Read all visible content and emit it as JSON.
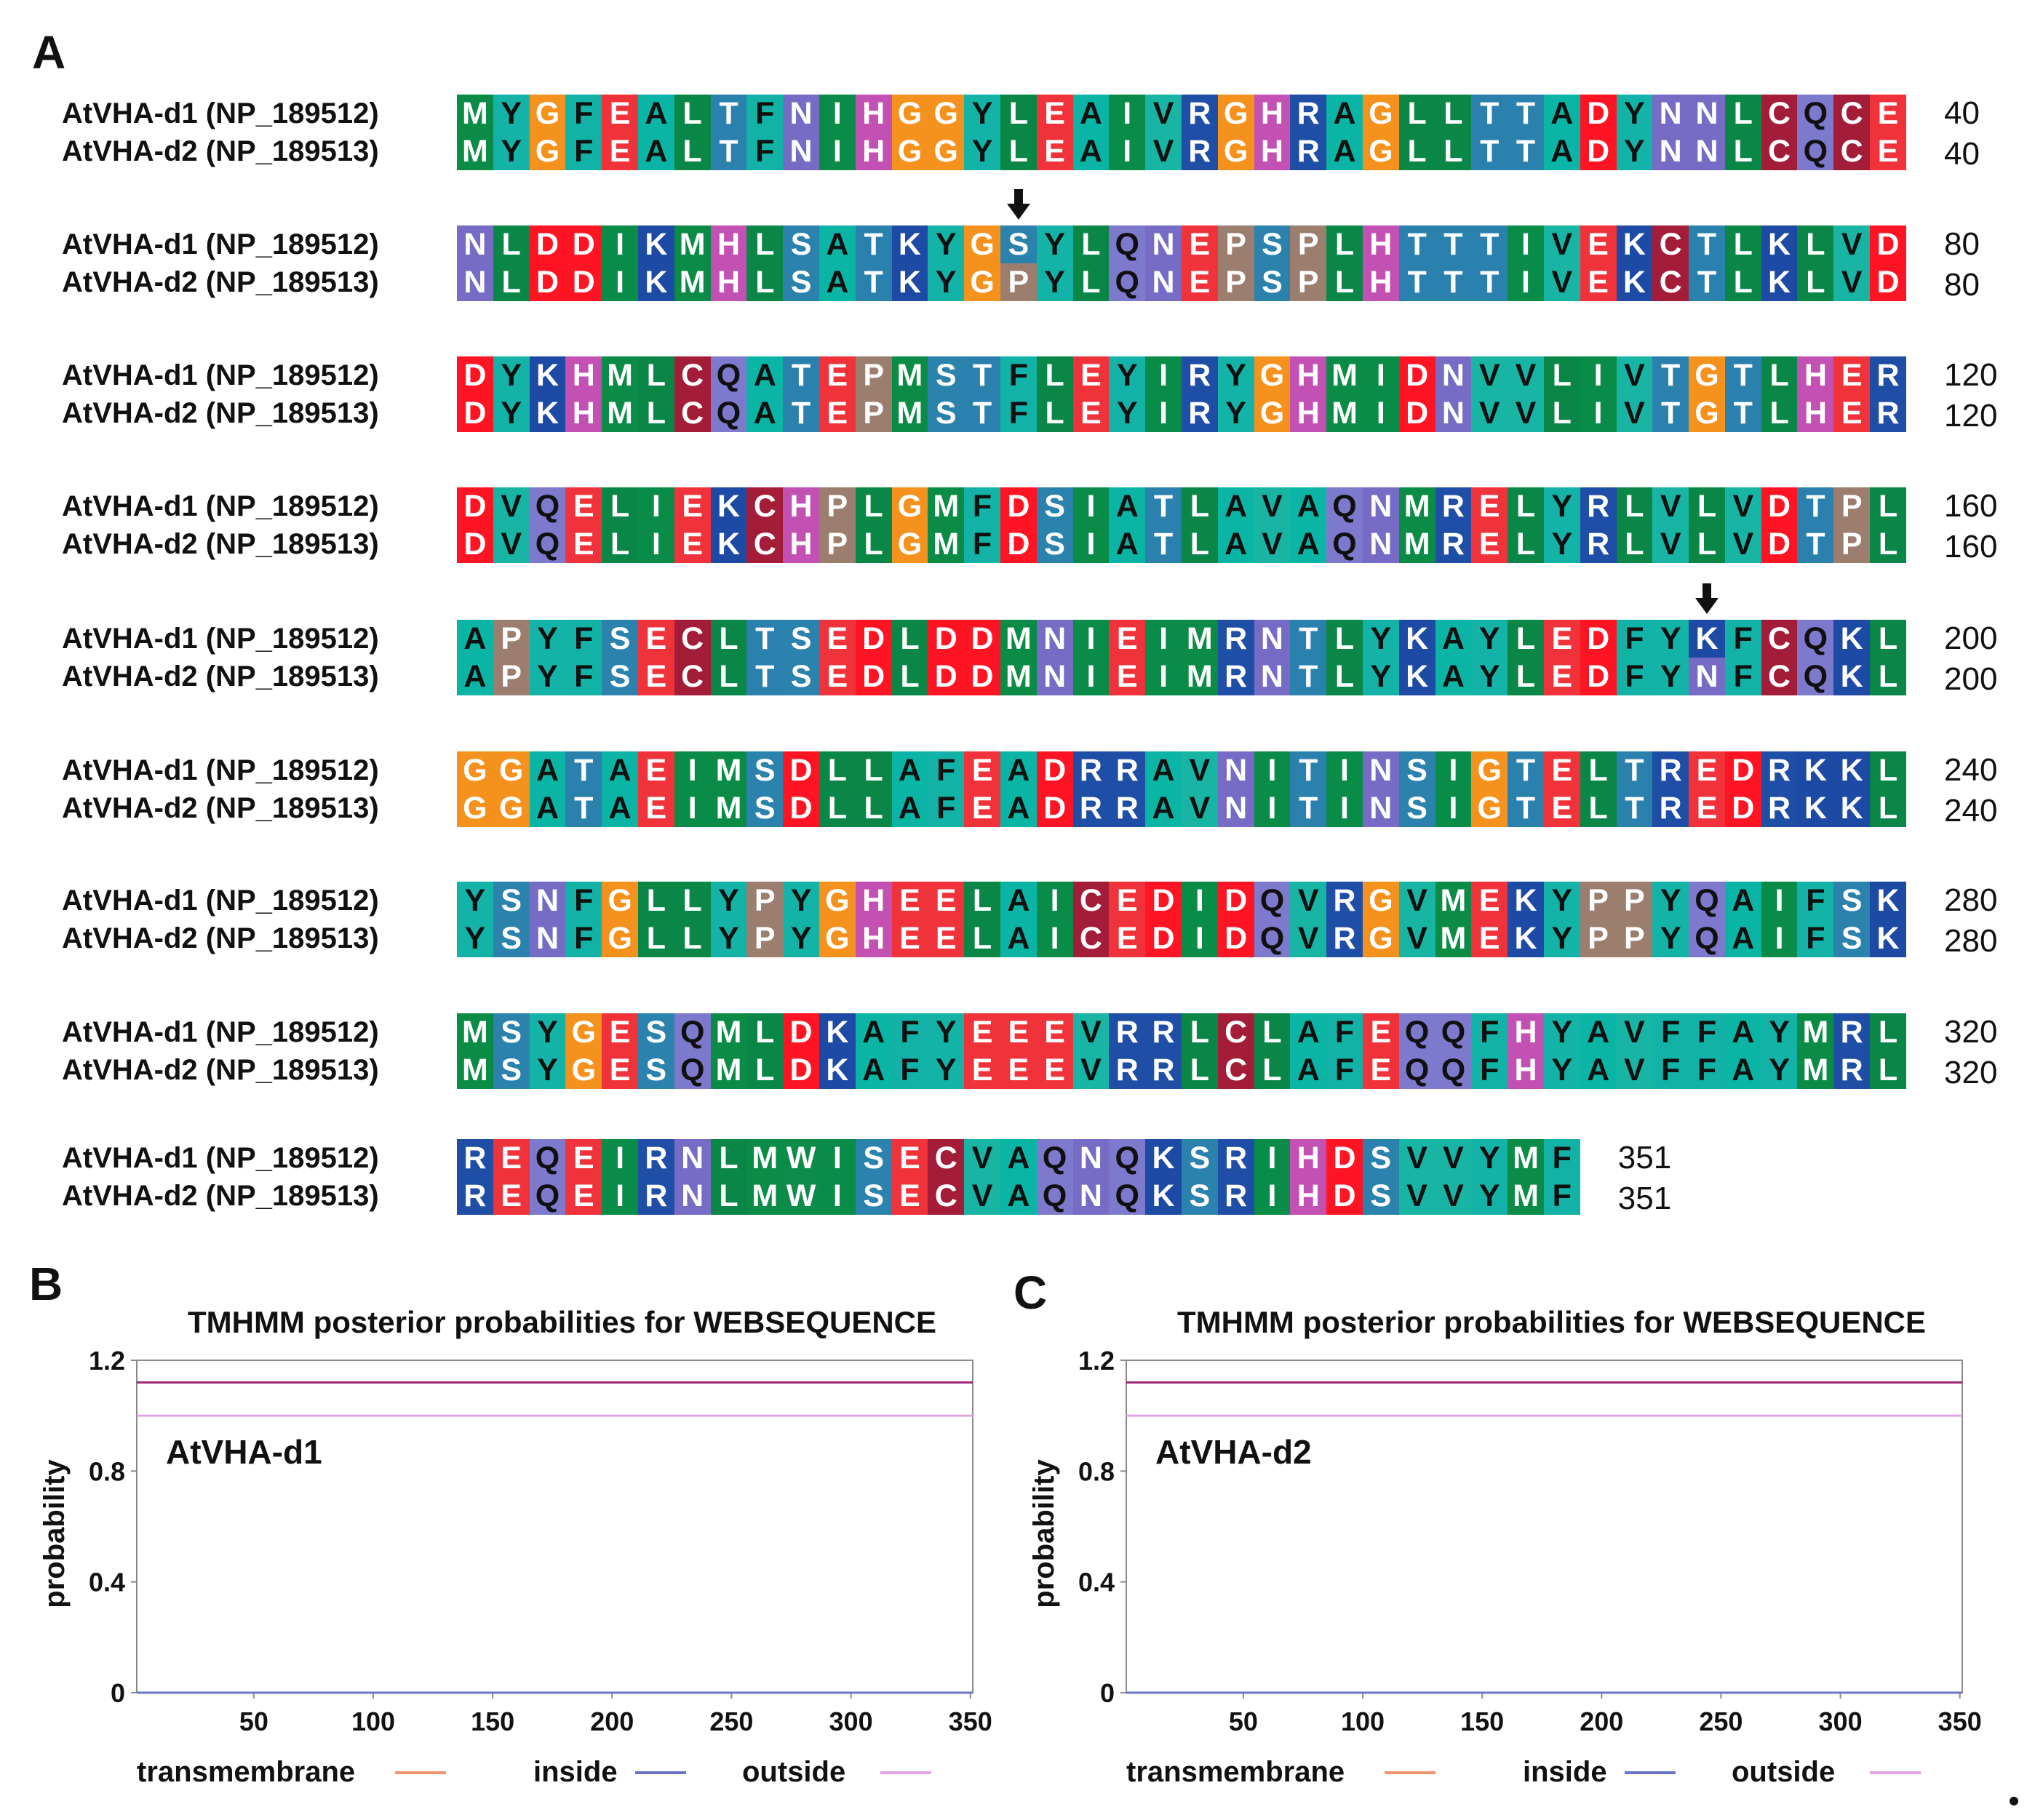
{
  "panels": {
    "a": "A",
    "b": "B",
    "c": "C"
  },
  "alignment": {
    "seq1_name": "AtVHA-d1 (NP_189512)",
    "seq2_name": "AtVHA-d2 (NP_189513)",
    "rows": [
      {
        "seq1": "MYGFEALTFNIHGGYLEAIVRGHRAGLLTTADYNNLCQCE",
        "seq2": "MYGFEALTFNIHGGYLEAIVRGHRAGLLTTADYNNLCQCE",
        "end": "40"
      },
      {
        "seq1": "NLDDIKMHLSATKYGSYLQNEPSPLHTTTIVEKCTLKLVD",
        "seq2": "NLDDIKMHLSATKYGPYLQNEPSPLHTTTIVEKCTLKLVD",
        "end": "80"
      },
      {
        "seq1": "DYKHMLCQATEPMSTFLEYIRYGHMIDNVVLIVTGTLHER",
        "seq2": "DYKHMLCQATEPMSTFLEYIRYGHMIDNVVLIVTGTLHER",
        "end": "120"
      },
      {
        "seq1": "DVQELIEKCHPLGMFDSIATLAVAQNMRELYRLVLVDTPL",
        "seq2": "DVQELIEKCHPLGMFDSIATLAVAQNMRELYRLVLVDTPL",
        "end": "160"
      },
      {
        "seq1": "APYFSECLTSEDLDDMNIEIMRNTLYKAYLEDFYKFCQKL",
        "seq2": "APYFSECLTSEDLDDMNIEIMRNTLYKAYLEDFYNFCQKL",
        "end": "200"
      },
      {
        "seq1": "GGATAEIMSDLLAFEADRRAVNITINSIGTELTREDRKKL",
        "seq2": "GGATAEIMSDLLAFEADRRAVNITINSIGTELTREDRKKL",
        "end": "240"
      },
      {
        "seq1": "YSNFGLLYPYGHEELAICEDIDQVRGVMEKYPPYQAIFSK",
        "seq2": "YSNFGLLYPYGHEELAICEDIDQVRGVMEKYPPYQAIFSK",
        "end": "280"
      },
      {
        "seq1": "MSYGESQMLDKAFYEEEVRRLCLAFEQQFHYAVFFAYMRL",
        "seq2": "MSYGESQMLDKAFYEEEVRRLCLAFEQQFHYAVFFAYMRL",
        "end": "320"
      },
      {
        "seq1": "REQEIRNLMWISECVAQNQKSRIHDSVVYMF",
        "seq2": "REQEIRNLMWISECVAQNQKSRIHDSVVYMF",
        "end": "351"
      }
    ],
    "variant_markers": [
      {
        "row": 1,
        "column": 16,
        "position": 56,
        "seq1_residue": "S",
        "seq2_residue": "P"
      },
      {
        "row": 4,
        "column": 35,
        "position": 195,
        "seq1_residue": "K",
        "seq2_residue": "N"
      }
    ],
    "residue_colors": {
      "A": "#0bb5a5",
      "C": "#a31c38",
      "D": "#ff1424",
      "E": "#f0323a",
      "F": "#12b2a6",
      "G": "#f5921e",
      "H": "#c350b3",
      "I": "#088c48",
      "K": "#1c4aa4",
      "L": "#0a8746",
      "M": "#0b8c46",
      "N": "#776cc5",
      "P": "#9c7e6e",
      "Q": "#7d79cd",
      "R": "#1f4ea6",
      "S": "#2b83ad",
      "T": "#2b81ad",
      "V": "#18b5a4",
      "W": "#0c8c48",
      "Y": "#13b3a7"
    },
    "dark_text_residues": [
      "A",
      "F",
      "Q",
      "V",
      "Y"
    ]
  },
  "charts": [
    {
      "panel": "B",
      "name": "AtVHA-d1"
    },
    {
      "panel": "C",
      "name": "AtVHA-d2"
    }
  ],
  "chart_data": [
    {
      "type": "line",
      "title": "TMHMM posterior probabilities for WEBSEQUENCE",
      "annotation": "AtVHA-d1",
      "xlabel": "",
      "ylabel": "probability",
      "xlim": [
        1,
        351
      ],
      "ylim": [
        0,
        1.2
      ],
      "xticks": [
        "50",
        "100",
        "150",
        "200",
        "250",
        "300",
        "350"
      ],
      "yticks": [
        "0",
        "0.4",
        "0.8",
        "1.2"
      ],
      "grid": false,
      "series": [
        {
          "name": "transmembrane",
          "color": "#f59270",
          "x": [
            1,
            351
          ],
          "values": [
            0,
            0
          ]
        },
        {
          "name": "inside",
          "color": "#6a74cc",
          "x": [
            1,
            351
          ],
          "values": [
            0,
            0
          ]
        },
        {
          "name": "outside",
          "color": "#e2a3e2",
          "x": [
            1,
            351
          ],
          "values": [
            1,
            1
          ]
        }
      ],
      "extra_line": {
        "color": "#a0287a",
        "y": 1.12
      },
      "legend": [
        "transmembrane",
        "inside",
        "outside"
      ]
    },
    {
      "type": "line",
      "title": "TMHMM posterior probabilities for WEBSEQUENCE",
      "annotation": "AtVHA-d2",
      "xlabel": "",
      "ylabel": "probability",
      "xlim": [
        1,
        351
      ],
      "ylim": [
        0,
        1.2
      ],
      "xticks": [
        "50",
        "100",
        "150",
        "200",
        "250",
        "300",
        "350"
      ],
      "yticks": [
        "0",
        "0.4",
        "0.8",
        "1.2"
      ],
      "grid": false,
      "series": [
        {
          "name": "transmembrane",
          "color": "#f59270",
          "x": [
            1,
            351
          ],
          "values": [
            0,
            0
          ]
        },
        {
          "name": "inside",
          "color": "#6a74cc",
          "x": [
            1,
            351
          ],
          "values": [
            0,
            0
          ]
        },
        {
          "name": "outside",
          "color": "#e2a3e2",
          "x": [
            1,
            351
          ],
          "values": [
            1,
            1
          ]
        }
      ],
      "extra_line": {
        "color": "#a0287a",
        "y": 1.12
      },
      "legend": [
        "transmembrane",
        "inside",
        "outside"
      ]
    }
  ]
}
